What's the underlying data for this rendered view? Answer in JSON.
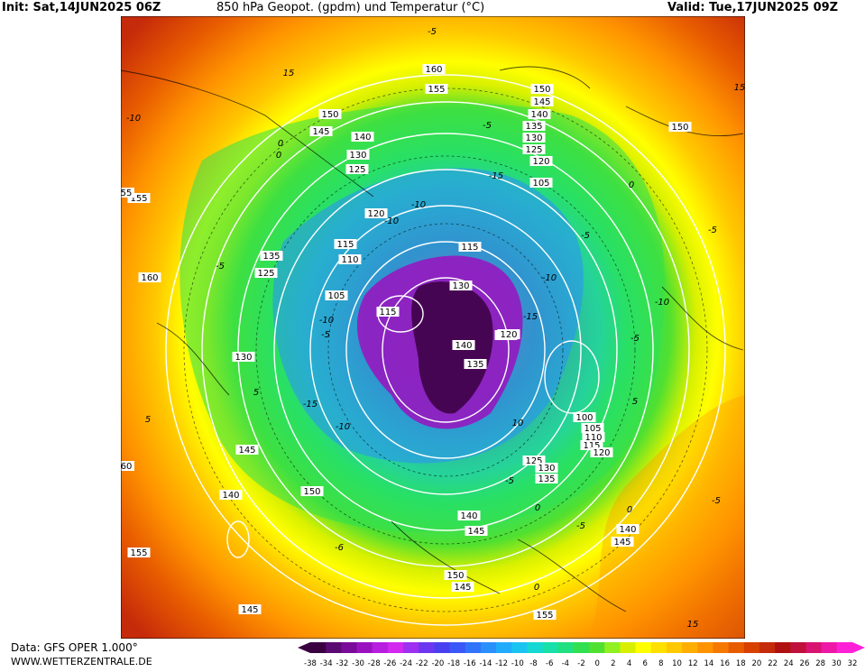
{
  "header": {
    "init_label": "Init: Sat,14JUN2025 06Z",
    "title": "850 hPa Geopot. (gpdm) und Temperatur (°C)",
    "valid_label": "Valid: Tue,17JUN2025 09Z"
  },
  "footer": {
    "data_source": "Data: GFS OPER 1.000°",
    "website": "WWW.WETTERZENTRALE.DE"
  },
  "legend": {
    "unit": "°C",
    "ticks": [
      "-38",
      "-34",
      "-32",
      "-30",
      "-28",
      "-26",
      "-24",
      "-22",
      "-20",
      "-18",
      "-16",
      "-14",
      "-12",
      "-10",
      "-8",
      "-6",
      "-4",
      "-2",
      "0",
      "2",
      "4",
      "6",
      "8",
      "10",
      "12",
      "14",
      "16",
      "18",
      "20",
      "22",
      "24",
      "26",
      "28",
      "30",
      "32"
    ],
    "colors": [
      "#3a0040",
      "#5a0a70",
      "#7a0a9a",
      "#9a12c0",
      "#b81ee0",
      "#d228f0",
      "#9e30f0",
      "#6c36f0",
      "#4a3ff0",
      "#3a58f8",
      "#2f74fa",
      "#2a90fb",
      "#20acfc",
      "#1ac4f2",
      "#16d8d2",
      "#18e0a8",
      "#20e080",
      "#30e050",
      "#50e030",
      "#90f020",
      "#d8f000",
      "#ffff00",
      "#ffe000",
      "#ffc800",
      "#ffae00",
      "#ff9400",
      "#f57800",
      "#e85c00",
      "#d84000",
      "#c52a0a",
      "#b01010",
      "#c0103c",
      "#d81470",
      "#ee18a8",
      "#ff20d8"
    ]
  },
  "map": {
    "geopotential_labels": [
      {
        "text": "160",
        "color": "white"
      },
      {
        "text": "155",
        "color": "white"
      },
      {
        "text": "150",
        "color": "white"
      },
      {
        "text": "145",
        "color": "white"
      },
      {
        "text": "140",
        "color": "white"
      },
      {
        "text": "135",
        "color": "white"
      },
      {
        "text": "130",
        "color": "white"
      },
      {
        "text": "125",
        "color": "white"
      },
      {
        "text": "120",
        "color": "white"
      },
      {
        "text": "105",
        "color": "white"
      },
      {
        "text": "150",
        "color": "white"
      },
      {
        "text": "145",
        "color": "white"
      },
      {
        "text": "140",
        "color": "white"
      },
      {
        "text": "130",
        "color": "white"
      },
      {
        "text": "125",
        "color": "white"
      },
      {
        "text": "120",
        "color": "white"
      },
      {
        "text": "115",
        "color": "white"
      },
      {
        "text": "110",
        "color": "white"
      },
      {
        "text": "135",
        "color": "white"
      },
      {
        "text": "125",
        "color": "white"
      },
      {
        "text": "105",
        "color": "white"
      },
      {
        "text": "115",
        "color": "white"
      },
      {
        "text": "115",
        "color": "white"
      },
      {
        "text": "130",
        "color": "white"
      },
      {
        "text": "140",
        "color": "white"
      },
      {
        "text": "135",
        "color": "white"
      },
      {
        "text": "130",
        "color": "white"
      },
      {
        "text": "160",
        "color": "white"
      },
      {
        "text": "130",
        "color": "white"
      },
      {
        "text": "145",
        "color": "white"
      },
      {
        "text": "140",
        "color": "white"
      },
      {
        "text": "150",
        "color": "white"
      },
      {
        "text": "140",
        "color": "white"
      },
      {
        "text": "145",
        "color": "white"
      },
      {
        "text": "150",
        "color": "white"
      },
      {
        "text": "145",
        "color": "white"
      },
      {
        "text": "155",
        "color": "white"
      },
      {
        "text": "155",
        "color": "white"
      },
      {
        "text": "140",
        "color": "white"
      },
      {
        "text": "145",
        "color": "white"
      },
      {
        "text": "100",
        "color": "white"
      },
      {
        "text": "105",
        "color": "white"
      },
      {
        "text": "110",
        "color": "white"
      },
      {
        "text": "115",
        "color": "white"
      },
      {
        "text": "120",
        "color": "white"
      },
      {
        "text": "125",
        "color": "white"
      },
      {
        "text": "130",
        "color": "white"
      },
      {
        "text": "135",
        "color": "white"
      },
      {
        "text": "150",
        "color": "white"
      },
      {
        "text": "155",
        "color": "white"
      },
      {
        "text": "60",
        "color": "white"
      },
      {
        "text": "55",
        "color": "white"
      },
      {
        "text": "145",
        "color": "white"
      },
      {
        "text": "120",
        "color": "white"
      }
    ],
    "temperature_labels": [
      "-5",
      "15",
      "-10",
      "0",
      "-5",
      "-10",
      "-15",
      "-5",
      "0",
      "-10",
      "-15",
      "-10",
      "-5",
      "-10",
      "-15",
      "-10",
      "-5",
      "-5",
      "0",
      "-5",
      "0",
      "-5",
      "5",
      "10",
      "-5",
      "-6",
      "0",
      "15",
      "5",
      "0",
      "-10",
      "5",
      "-5",
      "15"
    ]
  }
}
